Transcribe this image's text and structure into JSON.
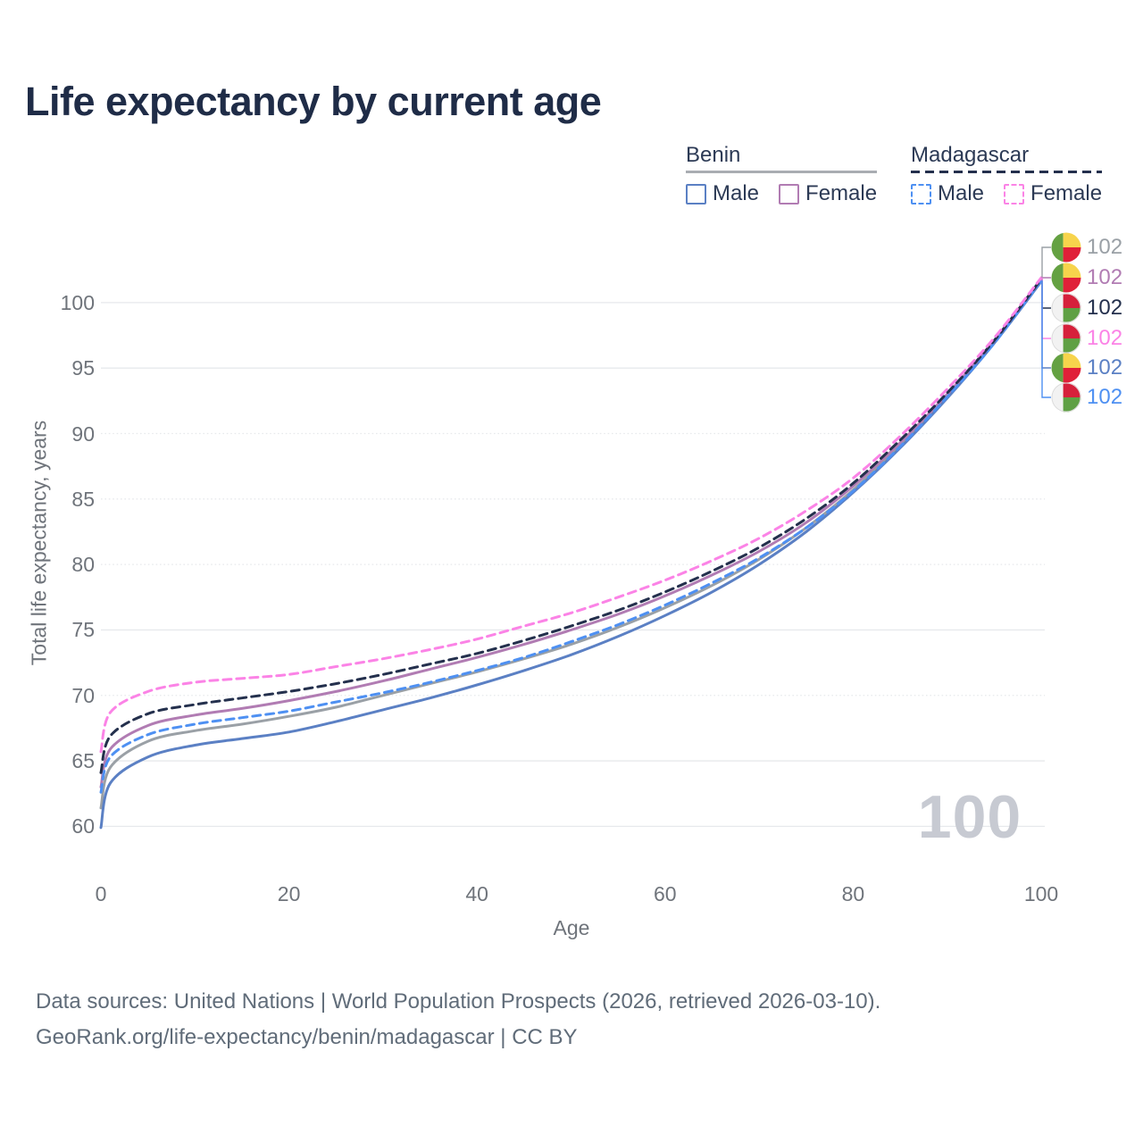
{
  "title": "Life expectancy by current age",
  "watermark": "100",
  "footer": {
    "line1": "Data sources: United Nations | World Population Prospects (2026, retrieved 2026-03-10).",
    "line2": "GeoRank.org/life-expectancy/benin/madagascar | CC BY"
  },
  "legend": {
    "groups": [
      {
        "label": "Benin",
        "underline_color": "#a9adb2",
        "underline_style": "solid",
        "entries": [
          {
            "label": "Male",
            "series": "benin-male"
          },
          {
            "label": "Female",
            "series": "benin-female"
          }
        ]
      },
      {
        "label": "Madagascar",
        "underline_color": "#24304d",
        "underline_style": "dashed",
        "entries": [
          {
            "label": "Male",
            "series": "madagascar-male"
          },
          {
            "label": "Female",
            "series": "madagascar-female"
          }
        ]
      }
    ]
  },
  "flags": {
    "benin": {
      "left_band": "#64a142",
      "top_right": "#f7d44c",
      "bottom_right": "#e02038"
    },
    "madagascar": {
      "left_band": "#f2f2f2",
      "top_right": "#d6203b",
      "bottom_right": "#5fa044",
      "ring": "#dcdcdc"
    }
  },
  "chart_data": {
    "type": "line",
    "title": "Life expectancy by current age",
    "xlabel": "Age",
    "ylabel": "Total life expectancy, years",
    "x_ticks": [
      0,
      20,
      40,
      60,
      80,
      100
    ],
    "y_ticks": [
      60,
      65,
      70,
      75,
      80,
      85,
      90,
      95,
      100
    ],
    "xlim": [
      0,
      100
    ],
    "ylim": [
      59,
      103
    ],
    "grid": true,
    "legend_position": "top-right",
    "x": [
      0,
      1,
      5,
      10,
      15,
      20,
      25,
      30,
      35,
      40,
      45,
      50,
      55,
      60,
      65,
      70,
      75,
      80,
      85,
      90,
      95,
      100
    ],
    "series": [
      {
        "id": "benin-total",
        "name": "Benin Both sexes",
        "color": "#9aa0a6",
        "dash": "solid",
        "flag": "benin",
        "end_label": "102",
        "values": [
          61.4,
          64.5,
          66.5,
          67.3,
          67.8,
          68.4,
          69.1,
          70.0,
          70.9,
          71.8,
          72.8,
          73.9,
          75.2,
          76.7,
          78.4,
          80.4,
          82.8,
          85.7,
          89.1,
          92.9,
          97.0,
          101.7
        ]
      },
      {
        "id": "benin-female",
        "name": "Benin Female",
        "color": "#b17cb3",
        "dash": "solid",
        "flag": "benin",
        "end_label": "102",
        "values": [
          63.0,
          65.9,
          67.7,
          68.5,
          69.0,
          69.6,
          70.3,
          71.1,
          72.0,
          72.9,
          73.9,
          75.0,
          76.2,
          77.6,
          79.2,
          81.0,
          83.2,
          86.0,
          89.3,
          93.0,
          97.1,
          101.8
        ]
      },
      {
        "id": "madagascar-total",
        "name": "Madagascar Both sexes",
        "color": "#24304d",
        "dash": "dashed",
        "flag": "madagascar",
        "end_label": "102",
        "values": [
          64.1,
          66.9,
          68.6,
          69.3,
          69.8,
          70.3,
          70.9,
          71.6,
          72.4,
          73.2,
          74.2,
          75.3,
          76.5,
          77.9,
          79.5,
          81.3,
          83.5,
          86.2,
          89.5,
          93.1,
          97.1,
          101.8
        ]
      },
      {
        "id": "madagascar-female",
        "name": "Madagascar Female",
        "color": "#fb83e6",
        "dash": "dashed",
        "flag": "madagascar",
        "end_label": "102",
        "values": [
          65.7,
          68.7,
          70.3,
          71.0,
          71.3,
          71.6,
          72.2,
          72.8,
          73.5,
          74.3,
          75.3,
          76.3,
          77.5,
          78.8,
          80.3,
          82.0,
          84.1,
          86.6,
          89.8,
          93.4,
          97.3,
          101.9
        ]
      },
      {
        "id": "benin-male",
        "name": "Benin Male",
        "color": "#5b80c4",
        "dash": "solid",
        "flag": "benin",
        "end_label": "102",
        "values": [
          59.9,
          63.3,
          65.3,
          66.2,
          66.7,
          67.2,
          68.0,
          68.9,
          69.8,
          70.8,
          71.9,
          73.1,
          74.5,
          76.1,
          77.9,
          80.0,
          82.5,
          85.5,
          88.9,
          92.7,
          96.9,
          101.6
        ]
      },
      {
        "id": "madagascar-male",
        "name": "Madagascar Male",
        "color": "#4e90f2",
        "dash": "dashed",
        "flag": "madagascar",
        "end_label": "102",
        "values": [
          62.6,
          65.3,
          67.0,
          67.8,
          68.3,
          68.8,
          69.5,
          70.2,
          71.0,
          71.9,
          72.9,
          74.1,
          75.4,
          76.9,
          78.6,
          80.5,
          82.8,
          85.6,
          89.0,
          92.8,
          96.9,
          101.7
        ]
      }
    ]
  }
}
